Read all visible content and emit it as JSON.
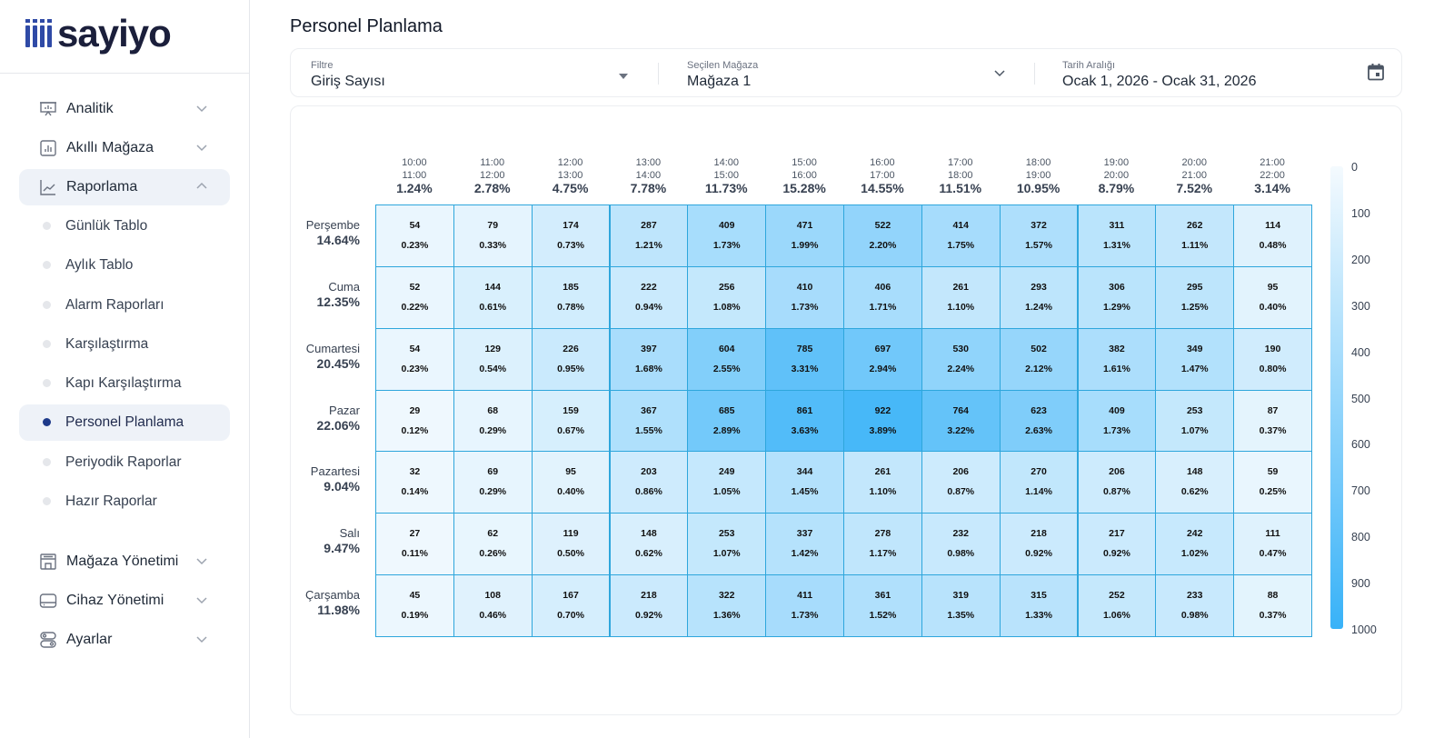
{
  "logo": {
    "text": "sayiyo"
  },
  "sidebar": {
    "items": [
      {
        "label": "Analitik",
        "icon": "presentation-icon",
        "expanded": false
      },
      {
        "label": "Akıllı Mağaza",
        "icon": "bar-chart-icon",
        "expanded": false
      },
      {
        "label": "Raporlama",
        "icon": "line-chart-icon",
        "expanded": true
      }
    ],
    "sub_items": [
      {
        "label": "Günlük Tablo"
      },
      {
        "label": "Aylık Tablo"
      },
      {
        "label": "Alarm Raporları"
      },
      {
        "label": "Karşılaştırma"
      },
      {
        "label": "Kapı Karşılaştırma"
      },
      {
        "label": "Personel Planlama",
        "active": true
      },
      {
        "label": "Periyodik Raporlar"
      },
      {
        "label": "Hazır Raporlar"
      }
    ],
    "items2": [
      {
        "label": "Mağaza Yönetimi",
        "icon": "store-icon"
      },
      {
        "label": "Cihaz Yönetimi",
        "icon": "device-icon"
      },
      {
        "label": "Ayarlar",
        "icon": "settings-toggle-icon"
      }
    ]
  },
  "page": {
    "title": "Personel Planlama"
  },
  "filters": {
    "filter": {
      "label": "Filtre",
      "value": "Giriş Sayısı"
    },
    "store": {
      "label": "Seçilen Mağaza",
      "value": "Mağaza 1"
    },
    "date": {
      "label": "Tarih Aralığı",
      "value": "Ocak 1, 2026 - Ocak 31, 2026"
    }
  },
  "colors": {
    "low": "#f4fafe",
    "high": "#38b2f8",
    "border": "#2ea6dc",
    "accent": "#1e3a8a"
  },
  "chart_data": {
    "type": "heatmap",
    "columns": [
      {
        "from": "10:00",
        "to": "11:00",
        "pct": "1.24%"
      },
      {
        "from": "11:00",
        "to": "12:00",
        "pct": "2.78%"
      },
      {
        "from": "12:00",
        "to": "13:00",
        "pct": "4.75%"
      },
      {
        "from": "13:00",
        "to": "14:00",
        "pct": "7.78%"
      },
      {
        "from": "14:00",
        "to": "15:00",
        "pct": "11.73%"
      },
      {
        "from": "15:00",
        "to": "16:00",
        "pct": "15.28%"
      },
      {
        "from": "16:00",
        "to": "17:00",
        "pct": "14.55%"
      },
      {
        "from": "17:00",
        "to": "18:00",
        "pct": "11.51%"
      },
      {
        "from": "18:00",
        "to": "19:00",
        "pct": "10.95%"
      },
      {
        "from": "19:00",
        "to": "20:00",
        "pct": "8.79%"
      },
      {
        "from": "20:00",
        "to": "21:00",
        "pct": "7.52%"
      },
      {
        "from": "21:00",
        "to": "22:00",
        "pct": "3.14%"
      }
    ],
    "rows": [
      {
        "day": "Perşembe",
        "pct": "14.64%",
        "values": [
          54,
          79,
          174,
          287,
          409,
          471,
          522,
          414,
          372,
          311,
          262,
          114
        ],
        "pcts": [
          "0.23%",
          "0.33%",
          "0.73%",
          "1.21%",
          "1.73%",
          "1.99%",
          "2.20%",
          "1.75%",
          "1.57%",
          "1.31%",
          "1.11%",
          "0.48%"
        ]
      },
      {
        "day": "Cuma",
        "pct": "12.35%",
        "values": [
          52,
          144,
          185,
          222,
          256,
          410,
          406,
          261,
          293,
          306,
          295,
          95
        ],
        "pcts": [
          "0.22%",
          "0.61%",
          "0.78%",
          "0.94%",
          "1.08%",
          "1.73%",
          "1.71%",
          "1.10%",
          "1.24%",
          "1.29%",
          "1.25%",
          "0.40%"
        ]
      },
      {
        "day": "Cumartesi",
        "pct": "20.45%",
        "values": [
          54,
          129,
          226,
          397,
          604,
          785,
          697,
          530,
          502,
          382,
          349,
          190
        ],
        "pcts": [
          "0.23%",
          "0.54%",
          "0.95%",
          "1.68%",
          "2.55%",
          "3.31%",
          "2.94%",
          "2.24%",
          "2.12%",
          "1.61%",
          "1.47%",
          "0.80%"
        ]
      },
      {
        "day": "Pazar",
        "pct": "22.06%",
        "values": [
          29,
          68,
          159,
          367,
          685,
          861,
          922,
          764,
          623,
          409,
          253,
          87
        ],
        "pcts": [
          "0.12%",
          "0.29%",
          "0.67%",
          "1.55%",
          "2.89%",
          "3.63%",
          "3.89%",
          "3.22%",
          "2.63%",
          "1.73%",
          "1.07%",
          "0.37%"
        ]
      },
      {
        "day": "Pazartesi",
        "pct": "9.04%",
        "values": [
          32,
          69,
          95,
          203,
          249,
          344,
          261,
          206,
          270,
          206,
          148,
          59
        ],
        "pcts": [
          "0.14%",
          "0.29%",
          "0.40%",
          "0.86%",
          "1.05%",
          "1.45%",
          "1.10%",
          "0.87%",
          "1.14%",
          "0.87%",
          "0.62%",
          "0.25%"
        ]
      },
      {
        "day": "Salı",
        "pct": "9.47%",
        "values": [
          27,
          62,
          119,
          148,
          253,
          337,
          278,
          232,
          218,
          217,
          242,
          111
        ],
        "pcts": [
          "0.11%",
          "0.26%",
          "0.50%",
          "0.62%",
          "1.07%",
          "1.42%",
          "1.17%",
          "0.98%",
          "0.92%",
          "0.92%",
          "1.02%",
          "0.47%"
        ]
      },
      {
        "day": "Çarşamba",
        "pct": "11.98%",
        "values": [
          45,
          108,
          167,
          218,
          322,
          411,
          361,
          319,
          315,
          252,
          233,
          88
        ],
        "pcts": [
          "0.19%",
          "0.46%",
          "0.70%",
          "0.92%",
          "1.36%",
          "1.73%",
          "1.52%",
          "1.35%",
          "1.33%",
          "1.06%",
          "0.98%",
          "0.37%"
        ]
      }
    ],
    "scale": {
      "min": 0,
      "max": 1000,
      "ticks": [
        "0",
        "100",
        "200",
        "300",
        "400",
        "500",
        "600",
        "700",
        "800",
        "900",
        "1000"
      ]
    }
  }
}
